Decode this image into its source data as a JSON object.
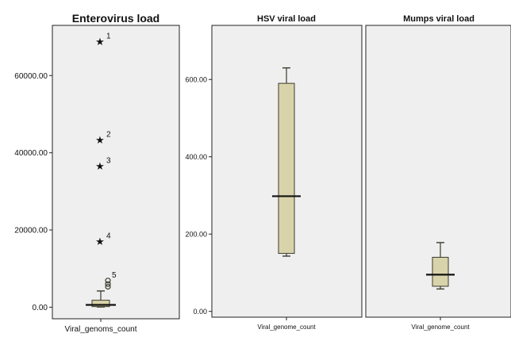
{
  "chart_data": [
    {
      "type": "boxplot",
      "title": "Enterovirus load",
      "xlabel": "Viral_genoms_count",
      "ylim": [
        -3000,
        73000
      ],
      "yticks": [
        0,
        20000,
        40000,
        60000
      ],
      "ytick_labels": [
        "0.00",
        "20000.00",
        "40000.00",
        "60000.00"
      ],
      "box": {
        "min": 50,
        "q1": 150,
        "median": 600,
        "q3": 1800,
        "max": 4200
      },
      "outliers": [
        {
          "value": 5300,
          "marker": "circle",
          "label": ""
        },
        {
          "value": 6000,
          "marker": "circle",
          "label": ""
        },
        {
          "value": 6900,
          "marker": "circle",
          "label": "5"
        },
        {
          "value": 17000,
          "marker": "star",
          "label": "4"
        },
        {
          "value": 36500,
          "marker": "star",
          "label": "3"
        },
        {
          "value": 43300,
          "marker": "star",
          "label": "2"
        },
        {
          "value": 68800,
          "marker": "star",
          "label": "1"
        }
      ]
    },
    {
      "type": "boxplot",
      "title": "HSV viral load",
      "xlabel": "Viral_genome_count",
      "ylim": [
        -15,
        740
      ],
      "yticks": [
        0,
        200,
        400,
        600
      ],
      "ytick_labels": [
        "0.00",
        "200.00",
        "400.00",
        "600.00"
      ],
      "box": {
        "min": 143,
        "q1": 150,
        "median": 298,
        "q3": 590,
        "max": 630
      },
      "outliers": []
    },
    {
      "type": "boxplot",
      "title": "Mumps viral load",
      "xlabel": "Viral_genome_count",
      "ylim": [
        -15,
        740
      ],
      "yticks": [],
      "ytick_labels": [],
      "box": {
        "min": 58,
        "q1": 65,
        "median": 95,
        "q3": 140,
        "max": 178
      },
      "outliers": []
    }
  ],
  "colors": {
    "box_fill": "#d9d3ab",
    "box_stroke": "#3a3a2c",
    "plot_bg": "#efefef",
    "frame": "#222222",
    "median": "#111111"
  }
}
